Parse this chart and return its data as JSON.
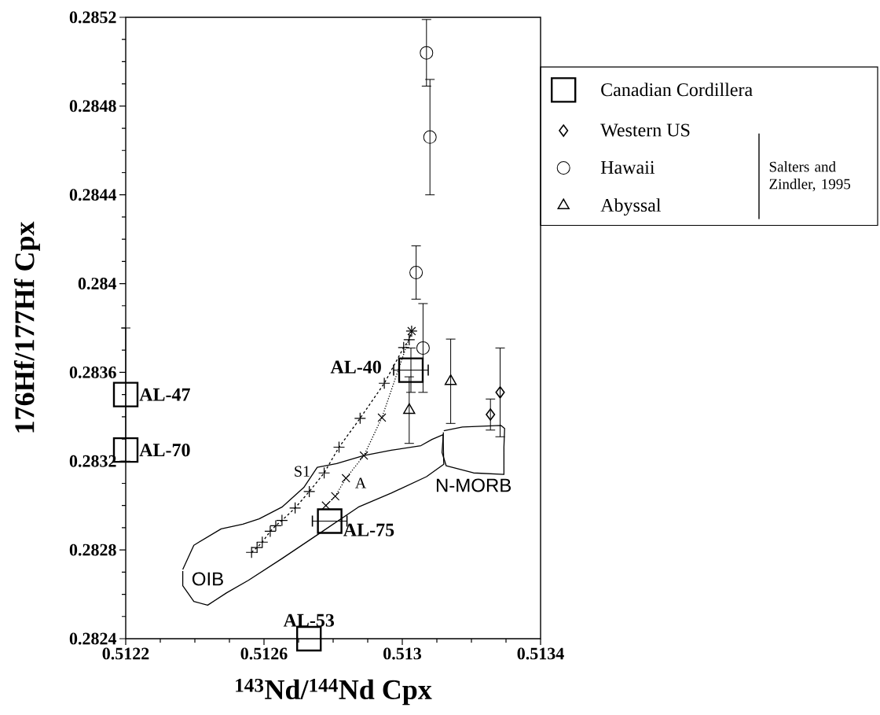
{
  "chart_data": {
    "type": "scatter",
    "xlabel": "$^{143}$Nd/$^{144}$Nd Cpx",
    "ylabel": "176Hf/177Hf Cpx",
    "xlim": [
      0.5122,
      0.5134
    ],
    "ylim": [
      0.2824,
      0.2852
    ],
    "xticks": [
      0.5122,
      {
        "value": 0.5123,
        "label": null
      },
      {
        "value": 0.5124,
        "label": null
      },
      {
        "value": 0.5125,
        "label": null
      },
      0.5126,
      {
        "value": 0.5127,
        "label": null
      },
      {
        "value": 0.5128,
        "label": null
      },
      {
        "value": 0.5129,
        "label": null
      },
      0.513,
      {
        "value": 0.5131,
        "label": null
      },
      {
        "value": 0.5132,
        "label": null
      },
      {
        "value": 0.5133,
        "label": null
      },
      0.5134
    ],
    "yticks": [
      0.2824,
      {
        "value": 0.2825,
        "label": null
      },
      {
        "value": 0.2826,
        "label": null
      },
      {
        "value": 0.2827,
        "label": null
      },
      0.2828,
      {
        "value": 0.2829,
        "label": null
      },
      {
        "value": 0.283,
        "label": null
      },
      {
        "value": 0.2831,
        "label": null
      },
      0.2832,
      {
        "value": 0.2833,
        "label": null
      },
      {
        "value": 0.2834,
        "label": null
      },
      {
        "value": 0.2835,
        "label": null
      },
      0.2836,
      {
        "value": 0.2837,
        "label": null
      },
      {
        "value": 0.2838,
        "label": null
      },
      {
        "value": 0.2839,
        "label": null
      },
      0.284,
      {
        "value": 0.2841,
        "label": null
      },
      {
        "value": 0.2842,
        "label": null
      },
      {
        "value": 0.2843,
        "label": null
      },
      0.2844,
      {
        "value": 0.2845,
        "label": null
      },
      {
        "value": 0.2846,
        "label": null
      },
      {
        "value": 0.2847,
        "label": null
      },
      0.2848,
      {
        "value": 0.2849,
        "label": null
      },
      {
        "value": 0.285,
        "label": null
      },
      {
        "value": 0.2851,
        "label": null
      },
      0.2852
    ],
    "grid": false,
    "legend": "right",
    "series": [
      {
        "name": "Canadian Cordillera",
        "marker": "square",
        "color": "#000000",
        "x": [
          0.5122,
          0.5122,
          0.513025,
          0.51279,
          0.51273
        ],
        "values": [
          0.2835,
          0.28325,
          0.28361,
          0.28293,
          0.2824
        ],
        "errors": [
          0.0003,
          null,
          0.0001,
          null,
          null
        ],
        "xerrors": [
          null,
          null,
          5e-05,
          5e-05,
          null
        ]
      },
      {
        "name": "Western US",
        "marker": "diamond",
        "color": "#000000",
        "x": [
          0.513283,
          0.513255
        ],
        "values": [
          0.28351,
          0.28341
        ],
        "errors": [
          0.0002,
          7e-05
        ]
      },
      {
        "name": "Hawaii",
        "marker": "circle",
        "color": "#000000",
        "x": [
          0.51307,
          0.51308,
          0.51304,
          0.51306
        ],
        "values": [
          0.28504,
          0.28466,
          0.28405,
          0.28371
        ],
        "errors": [
          0.00015,
          0.00026,
          0.00012,
          0.0002
        ]
      },
      {
        "name": "Abyssal",
        "marker": "triangle",
        "color": "#000000",
        "x": [
          0.51314,
          0.51302
        ],
        "values": [
          0.28356,
          0.28343
        ],
        "errors": [
          0.00019,
          0.00015
        ]
      },
      {
        "name": "S1",
        "type": "line",
        "marker": "cross",
        "line_style": "dashed",
        "color": "#000000",
        "x": [
          0.512564,
          0.51258,
          0.512595,
          0.512618,
          0.512634,
          0.512652,
          0.51269,
          0.512731,
          0.512774,
          0.512817,
          0.512878,
          0.512948,
          0.513004,
          0.51302,
          0.513027
        ],
        "values": [
          0.282789,
          0.282811,
          0.282835,
          0.282884,
          0.282909,
          0.282933,
          0.282989,
          0.283063,
          0.283147,
          0.283263,
          0.283393,
          0.283551,
          0.283712,
          0.283747,
          0.283786
        ]
      },
      {
        "name": "A",
        "type": "line",
        "marker": "cross",
        "line_style": "dotted",
        "color": "#000000",
        "x": [
          0.512779,
          0.512806,
          0.512837,
          0.512889,
          0.512941,
          0.513027
        ],
        "values": [
          0.283,
          0.283042,
          0.283123,
          0.283225,
          0.283396,
          0.283786
        ]
      },
      {
        "type": "line",
        "marker": "none",
        "line_style": "solid",
        "color": "#000000",
        "x": [
          0.512365,
          0.512397,
          0.512476,
          0.512539,
          0.512586,
          0.512652,
          0.512715,
          0.512754,
          0.51281,
          0.512889,
          0.512968,
          0.513054,
          0.513086,
          0.513118,
          0.51312,
          0.51307,
          0.512968,
          0.512873,
          0.512763,
          0.512652,
          0.512555,
          0.512492,
          0.512437,
          0.512397,
          0.512365,
          0.512365
        ],
        "values": [
          0.282712,
          0.282821,
          0.282895,
          0.282916,
          0.28294,
          0.282993,
          0.283081,
          0.283172,
          0.283189,
          0.283225,
          0.283249,
          0.28327,
          0.283298,
          0.283319,
          0.283186,
          0.28313,
          0.283056,
          0.282993,
          0.282877,
          0.282761,
          0.282663,
          0.282607,
          0.282551,
          0.282568,
          0.282639,
          0.282705
        ]
      },
      {
        "type": "line",
        "marker": "none",
        "line_style": "solid",
        "color": "#000000",
        "x": [
          0.51312,
          0.513174,
          0.513285,
          0.513296,
          0.513294,
          0.513294,
          0.513206,
          0.513127,
          0.513115,
          0.513119
        ],
        "values": [
          0.283337,
          0.283354,
          0.283361,
          0.283347,
          0.283263,
          0.28314,
          0.283147,
          0.283179,
          0.283239,
          0.28333
        ]
      }
    ],
    "annotations": [
      {
        "text": "AL-47",
        "x": 0.5122,
        "y": 0.2835
      },
      {
        "text": "AL-70",
        "x": 0.5122,
        "y": 0.28325
      },
      {
        "text": "AL-40",
        "x": 0.513025,
        "y": 0.28361
      },
      {
        "text": "AL-75",
        "x": 0.51279,
        "y": 0.28293
      },
      {
        "text": "AL-53",
        "x": 0.51273,
        "y": 0.2824
      },
      "OIB",
      "N-MORB",
      "Salters and Zindler, 1995"
    ]
  }
}
